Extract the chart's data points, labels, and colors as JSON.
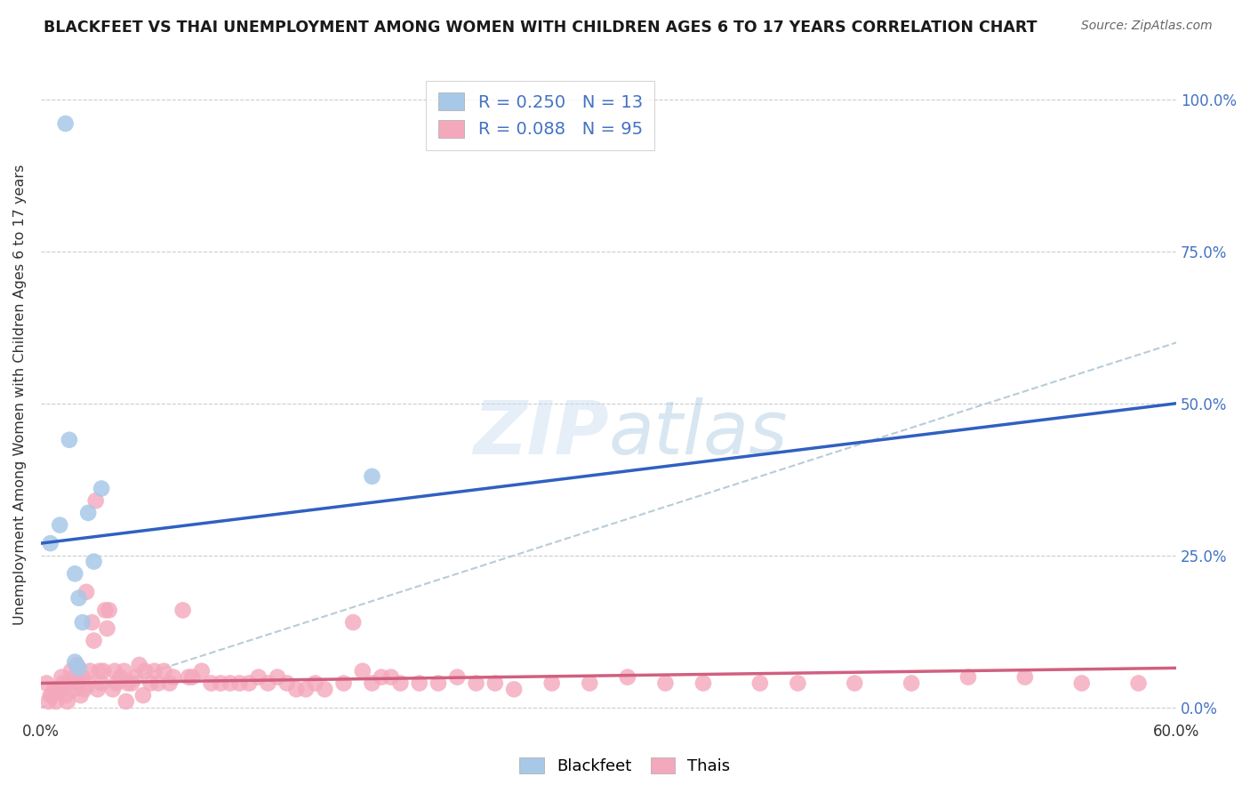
{
  "title": "BLACKFEET VS THAI UNEMPLOYMENT AMONG WOMEN WITH CHILDREN AGES 6 TO 17 YEARS CORRELATION CHART",
  "source": "Source: ZipAtlas.com",
  "ylabel": "Unemployment Among Women with Children Ages 6 to 17 years",
  "xlim": [
    0.0,
    0.6
  ],
  "ylim": [
    -0.02,
    1.05
  ],
  "yplot_min": 0.0,
  "yplot_max": 1.0,
  "xticks": [
    0.0,
    0.1,
    0.2,
    0.3,
    0.4,
    0.5,
    0.6
  ],
  "xticklabels": [
    "0.0%",
    "",
    "",
    "",
    "",
    "",
    "60.0%"
  ],
  "yticks": [
    0.0,
    0.25,
    0.5,
    0.75,
    1.0
  ],
  "yticklabels_right": [
    "0.0%",
    "25.0%",
    "50.0%",
    "75.0%",
    "100.0%"
  ],
  "blackfeet_color": "#a8c8e8",
  "thai_color": "#f4a8bc",
  "blackfeet_line_color": "#3060c0",
  "thai_line_color": "#d06080",
  "diagonal_color": "#b8ccd8",
  "R_blackfeet": 0.25,
  "N_blackfeet": 13,
  "R_thai": 0.088,
  "N_thai": 95,
  "legend_labels": [
    "Blackfeet",
    "Thais"
  ],
  "watermark_zip": "ZIP",
  "watermark_atlas": "atlas",
  "background_color": "#ffffff",
  "grid_color": "#cccccc",
  "blackfeet_x": [
    0.005,
    0.01,
    0.015,
    0.018,
    0.02,
    0.022,
    0.025,
    0.028,
    0.032,
    0.02,
    0.018,
    0.175,
    0.013
  ],
  "blackfeet_y": [
    0.27,
    0.3,
    0.44,
    0.22,
    0.18,
    0.14,
    0.32,
    0.24,
    0.36,
    0.065,
    0.075,
    0.38,
    0.96
  ],
  "thai_x": [
    0.003,
    0.005,
    0.007,
    0.008,
    0.01,
    0.011,
    0.012,
    0.013,
    0.015,
    0.016,
    0.017,
    0.018,
    0.019,
    0.02,
    0.021,
    0.022,
    0.023,
    0.025,
    0.026,
    0.027,
    0.028,
    0.03,
    0.031,
    0.032,
    0.033,
    0.035,
    0.036,
    0.038,
    0.04,
    0.042,
    0.044,
    0.046,
    0.048,
    0.05,
    0.052,
    0.055,
    0.058,
    0.06,
    0.062,
    0.065,
    0.068,
    0.07,
    0.075,
    0.078,
    0.08,
    0.085,
    0.09,
    0.095,
    0.1,
    0.105,
    0.11,
    0.115,
    0.12,
    0.125,
    0.13,
    0.135,
    0.14,
    0.145,
    0.15,
    0.16,
    0.165,
    0.17,
    0.175,
    0.18,
    0.185,
    0.19,
    0.2,
    0.21,
    0.22,
    0.23,
    0.24,
    0.25,
    0.27,
    0.29,
    0.31,
    0.33,
    0.35,
    0.38,
    0.4,
    0.43,
    0.46,
    0.49,
    0.52,
    0.55,
    0.58,
    0.004,
    0.006,
    0.009,
    0.014,
    0.024,
    0.029,
    0.034,
    0.039,
    0.045,
    0.054
  ],
  "thai_y": [
    0.04,
    0.02,
    0.03,
    0.01,
    0.03,
    0.05,
    0.04,
    0.02,
    0.04,
    0.06,
    0.03,
    0.05,
    0.07,
    0.04,
    0.02,
    0.05,
    0.03,
    0.04,
    0.06,
    0.14,
    0.11,
    0.03,
    0.06,
    0.04,
    0.06,
    0.13,
    0.16,
    0.03,
    0.04,
    0.05,
    0.06,
    0.04,
    0.04,
    0.05,
    0.07,
    0.06,
    0.04,
    0.06,
    0.04,
    0.06,
    0.04,
    0.05,
    0.16,
    0.05,
    0.05,
    0.06,
    0.04,
    0.04,
    0.04,
    0.04,
    0.04,
    0.05,
    0.04,
    0.05,
    0.04,
    0.03,
    0.03,
    0.04,
    0.03,
    0.04,
    0.14,
    0.06,
    0.04,
    0.05,
    0.05,
    0.04,
    0.04,
    0.04,
    0.05,
    0.04,
    0.04,
    0.03,
    0.04,
    0.04,
    0.05,
    0.04,
    0.04,
    0.04,
    0.04,
    0.04,
    0.04,
    0.05,
    0.05,
    0.04,
    0.04,
    0.01,
    0.02,
    0.03,
    0.01,
    0.19,
    0.34,
    0.16,
    0.06,
    0.01,
    0.02
  ],
  "blackfeet_line_x0": 0.0,
  "blackfeet_line_y0": 0.27,
  "blackfeet_line_x1": 0.6,
  "blackfeet_line_y1": 0.5,
  "thai_line_x0": 0.0,
  "thai_line_y0": 0.04,
  "thai_line_x1": 0.6,
  "thai_line_y1": 0.065
}
